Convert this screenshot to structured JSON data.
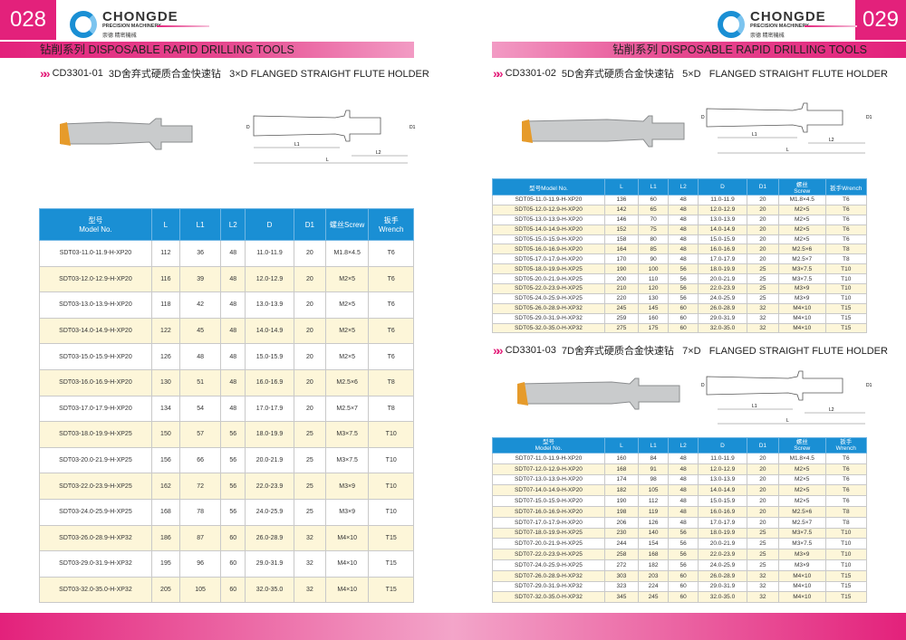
{
  "pages": {
    "left_number": "028",
    "right_number": "029"
  },
  "logo": {
    "brand": "CHONGDE",
    "registered": "®",
    "subtitle": "PRECISION MACHINERY",
    "chinese": "崇德 精密機械"
  },
  "band_title": "钻削系列 DISPOSABLE RAPID DRILLING TOOLS",
  "colors": {
    "accent_pink": "#e3217b",
    "header_blue": "#1a8fd4",
    "alt_row": "#fdf6d9"
  },
  "sections": [
    {
      "code": "CD3301-01",
      "title": "3D舍弃式硬质合金快速钻   3×D FLANGED STRAIGHT FLUTE HOLDER"
    },
    {
      "code": "CD3301-02",
      "title": "5D舍弃式硬质合金快速钻   5×D   FLANGED STRAIGHT FLUTE HOLDER"
    },
    {
      "code": "CD3301-03",
      "title": "7D舍弃式硬质合金快速钻   7×D   FLANGED STRAIGHT FLUTE HOLDER"
    }
  ],
  "drawing_labels": {
    "d": "D",
    "d1": "D1",
    "l": "L",
    "l1": "L1",
    "l2": "L2"
  },
  "tables": [
    {
      "headers": [
        "型号\nModel No.",
        "L",
        "L1",
        "L2",
        "D",
        "D1",
        "螺丝Screw",
        "扳手\nWrench"
      ],
      "rows": [
        [
          "SDT03-11.0-11.9-H-XP20",
          "112",
          "36",
          "48",
          "11.0-11.9",
          "20",
          "M1.8×4.5",
          "T6"
        ],
        [
          "SDT03-12.0-12.9-H-XP20",
          "116",
          "39",
          "48",
          "12.0-12.9",
          "20",
          "M2×5",
          "T6"
        ],
        [
          "SDT03-13.0-13.9-H-XP20",
          "118",
          "42",
          "48",
          "13.0-13.9",
          "20",
          "M2×5",
          "T6"
        ],
        [
          "SDT03-14.0-14.9-H-XP20",
          "122",
          "45",
          "48",
          "14.0-14.9",
          "20",
          "M2×5",
          "T6"
        ],
        [
          "SDT03-15.0-15.9-H-XP20",
          "126",
          "48",
          "48",
          "15.0-15.9",
          "20",
          "M2×5",
          "T6"
        ],
        [
          "SDT03-16.0-16.9-H-XP20",
          "130",
          "51",
          "48",
          "16.0-16.9",
          "20",
          "M2.5×6",
          "T8"
        ],
        [
          "SDT03-17.0-17.9-H-XP20",
          "134",
          "54",
          "48",
          "17.0-17.9",
          "20",
          "M2.5×7",
          "T8"
        ],
        [
          "SDT03-18.0-19.9-H-XP25",
          "150",
          "57",
          "56",
          "18.0-19.9",
          "25",
          "M3×7.5",
          "T10"
        ],
        [
          "SDT03-20.0-21.9-H-XP25",
          "156",
          "66",
          "56",
          "20.0-21.9",
          "25",
          "M3×7.5",
          "T10"
        ],
        [
          "SDT03-22.0-23.9-H-XP25",
          "162",
          "72",
          "56",
          "22.0-23.9",
          "25",
          "M3×9",
          "T10"
        ],
        [
          "SDT03-24.0-25.9-H-XP25",
          "168",
          "78",
          "56",
          "24.0-25.9",
          "25",
          "M3×9",
          "T10"
        ],
        [
          "SDT03-26.0-28.9-H-XP32",
          "186",
          "87",
          "60",
          "26.0-28.9",
          "32",
          "M4×10",
          "T15"
        ],
        [
          "SDT03-29.0-31.9-H-XP32",
          "195",
          "96",
          "60",
          "29.0-31.9",
          "32",
          "M4×10",
          "T15"
        ],
        [
          "SDT03-32.0-35.0-H-XP32",
          "205",
          "105",
          "60",
          "32.0-35.0",
          "32",
          "M4×10",
          "T15"
        ]
      ]
    },
    {
      "headers": [
        "型号Model No.",
        "L",
        "L1",
        "L2",
        "D",
        "D1",
        "螺丝\nScrew",
        "扳手Wrench"
      ],
      "rows": [
        [
          "SDT05-11.0-11.9-H-XP20",
          "136",
          "60",
          "48",
          "11.0-11.9",
          "20",
          "M1.8×4.5",
          "T6"
        ],
        [
          "SDT05-12.0-12.9-H-XP20",
          "142",
          "65",
          "48",
          "12.0-12.9",
          "20",
          "M2×5",
          "T6"
        ],
        [
          "SDT05-13.0-13.9-H-XP20",
          "146",
          "70",
          "48",
          "13.0-13.9",
          "20",
          "M2×5",
          "T6"
        ],
        [
          "SDT05-14.0-14.9-H-XP20",
          "152",
          "75",
          "48",
          "14.0-14.9",
          "20",
          "M2×5",
          "T6"
        ],
        [
          "SDT05-15.0-15.9-H-XP20",
          "158",
          "80",
          "48",
          "15.0-15.9",
          "20",
          "M2×5",
          "T6"
        ],
        [
          "SDT05-16.0-16.9-H-XP20",
          "164",
          "85",
          "48",
          "16.0-16.9",
          "20",
          "M2.5×6",
          "T8"
        ],
        [
          "SDT05-17.0-17.9-H-XP20",
          "170",
          "90",
          "48",
          "17.0-17.9",
          "20",
          "M2.5×7",
          "T8"
        ],
        [
          "SDT05-18.0-19.9-H-XP25",
          "190",
          "100",
          "56",
          "18.0-19.9",
          "25",
          "M3×7.5",
          "T10"
        ],
        [
          "SDT05-20.0-21.9-H-XP25",
          "200",
          "110",
          "56",
          "20.0-21.9",
          "25",
          "M3×7.5",
          "T10"
        ],
        [
          "SDT05-22.0-23.9-H-XP25",
          "210",
          "120",
          "56",
          "22.0-23.9",
          "25",
          "M3×9",
          "T10"
        ],
        [
          "SDT05-24.0-25.9-H-XP25",
          "220",
          "130",
          "56",
          "24.0-25.9",
          "25",
          "M3×9",
          "T10"
        ],
        [
          "SDT05-26.0-28.9-H-XP32",
          "245",
          "145",
          "60",
          "26.0-28.9",
          "32",
          "M4×10",
          "T15"
        ],
        [
          "SDT05-29.0-31.9-H-XP32",
          "259",
          "160",
          "60",
          "29.0-31.9",
          "32",
          "M4×10",
          "T15"
        ],
        [
          "SDT05-32.0-35.0-H-XP32",
          "275",
          "175",
          "60",
          "32.0-35.0",
          "32",
          "M4×10",
          "T15"
        ]
      ]
    },
    {
      "headers": [
        "型号\nModel No.",
        "L",
        "L1",
        "L2",
        "D",
        "D1",
        "螺丝\nScrew",
        "扳手\nWrench"
      ],
      "rows": [
        [
          "SDT07-11.0-11.9-H-XP20",
          "160",
          "84",
          "48",
          "11.0-11.9",
          "20",
          "M1.8×4.5",
          "T6"
        ],
        [
          "SDT07-12.0-12.9-H-XP20",
          "168",
          "91",
          "48",
          "12.0-12.9",
          "20",
          "M2×5",
          "T6"
        ],
        [
          "SDT07-13.0-13.9-H-XP20",
          "174",
          "98",
          "48",
          "13.0-13.9",
          "20",
          "M2×5",
          "T6"
        ],
        [
          "SDT07-14.0-14.9-H-XP20",
          "182",
          "105",
          "48",
          "14.0-14.9",
          "20",
          "M2×5",
          "T6"
        ],
        [
          "SDT07-15.0-15.9-H-XP20",
          "190",
          "112",
          "48",
          "15.0-15.9",
          "20",
          "M2×5",
          "T6"
        ],
        [
          "SDT07-16.0-16.9-H-XP20",
          "198",
          "119",
          "48",
          "16.0-16.9",
          "20",
          "M2.5×6",
          "T8"
        ],
        [
          "SDT07-17.0-17.9-H-XP20",
          "206",
          "126",
          "48",
          "17.0-17.9",
          "20",
          "M2.5×7",
          "T8"
        ],
        [
          "SDT07-18.0-19.9-H-XP25",
          "230",
          "140",
          "56",
          "18.0-19.9",
          "25",
          "M3×7.5",
          "T10"
        ],
        [
          "SDT07-20.0-21.9-H-XP25",
          "244",
          "154",
          "56",
          "20.0-21.9",
          "25",
          "M3×7.5",
          "T10"
        ],
        [
          "SDT07-22.0-23.9-H-XP25",
          "258",
          "168",
          "56",
          "22.0-23.9",
          "25",
          "M3×9",
          "T10"
        ],
        [
          "SDT07-24.0-25.9-H-XP25",
          "272",
          "182",
          "56",
          "24.0-25.9",
          "25",
          "M3×9",
          "T10"
        ],
        [
          "SDT07-26.0-28.9-H-XP32",
          "303",
          "203",
          "60",
          "26.0-28.9",
          "32",
          "M4×10",
          "T15"
        ],
        [
          "SDT07-29.0-31.9-H-XP32",
          "323",
          "224",
          "60",
          "29.0-31.9",
          "32",
          "M4×10",
          "T15"
        ],
        [
          "SDT07-32.0-35.0-H-XP32",
          "345",
          "245",
          "60",
          "32.0-35.0",
          "32",
          "M4×10",
          "T15"
        ]
      ]
    }
  ]
}
